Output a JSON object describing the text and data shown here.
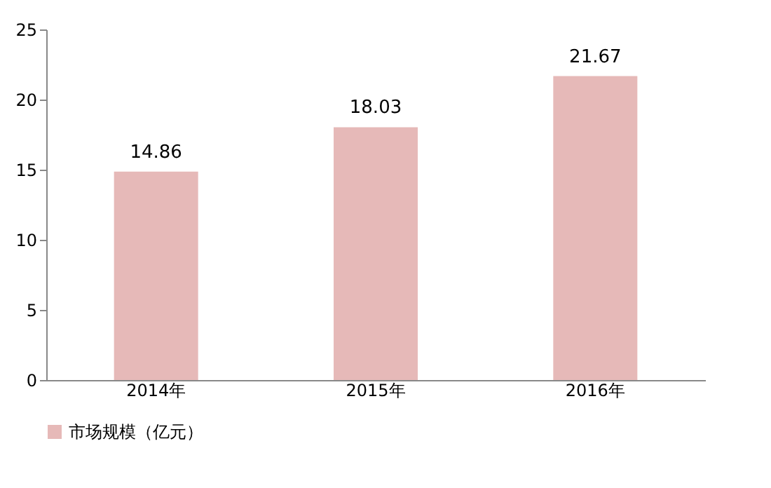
{
  "chart_data": {
    "type": "bar",
    "categories": [
      "2014年",
      "2015年",
      "2016年"
    ],
    "series": [
      {
        "name": "市场规模（亿元）",
        "color": "#e6b9b8",
        "values": [
          14.86,
          18.03,
          21.67
        ]
      }
    ],
    "ylim": [
      0,
      25
    ],
    "yticks": [
      0,
      5,
      10,
      15,
      20,
      25
    ],
    "grid": false,
    "legend": "bottom",
    "data_labels": true
  }
}
